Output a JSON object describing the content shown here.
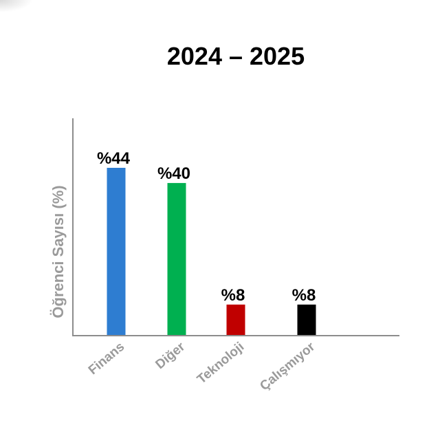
{
  "chart_data": {
    "type": "bar",
    "title": "2024 – 2025",
    "xlabel": "",
    "ylabel": "Öğrenci Sayısı (%)",
    "categories": [
      "Finans",
      "Diğer",
      "Teknoloji",
      "Çalışmıyor"
    ],
    "values": [
      44,
      40,
      8,
      8
    ],
    "value_labels": [
      "%44",
      "%40",
      "%8",
      "%8"
    ],
    "colors": [
      "#2e7dd1",
      "#00b050",
      "#c00000",
      "#000000"
    ],
    "ylim": [
      0,
      50
    ],
    "grid": false,
    "legend": "none"
  }
}
